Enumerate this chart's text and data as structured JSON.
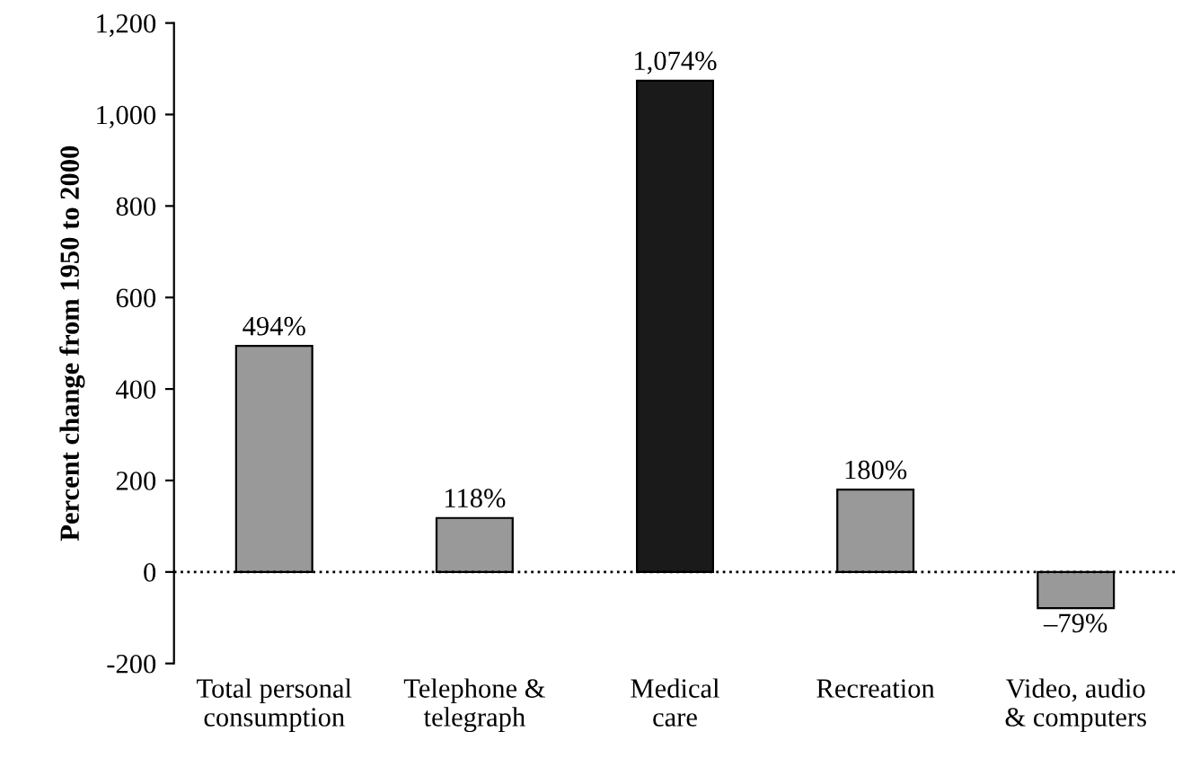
{
  "chart_data": {
    "type": "bar",
    "ylabel": "Percent change from 1950 to 2000",
    "categories": [
      "Total personal\nconsumption",
      "Telephone &\ntelegraph",
      "Medical\ncare",
      "Recreation",
      "Video, audio\n& computers"
    ],
    "values": [
      494,
      118,
      1074,
      180,
      -79
    ],
    "colors": [
      "#999999",
      "#999999",
      "#1a1a1a",
      "#999999",
      "#999999"
    ],
    "value_labels": [
      "494%",
      "118%",
      "1,074%",
      "180%",
      "–79%"
    ],
    "ylim": [
      -200,
      1200
    ],
    "yticks": [
      {
        "value": -200,
        "label": "-200"
      },
      0,
      200,
      400,
      600,
      800,
      {
        "value": 1000,
        "label": "1,000"
      },
      {
        "value": 1200,
        "label": "1,200"
      }
    ],
    "ref_lines": [
      {
        "axis": "y",
        "value": 0,
        "color": "#000000",
        "line_style": "dotted"
      }
    ],
    "grid": false,
    "legend": false
  }
}
